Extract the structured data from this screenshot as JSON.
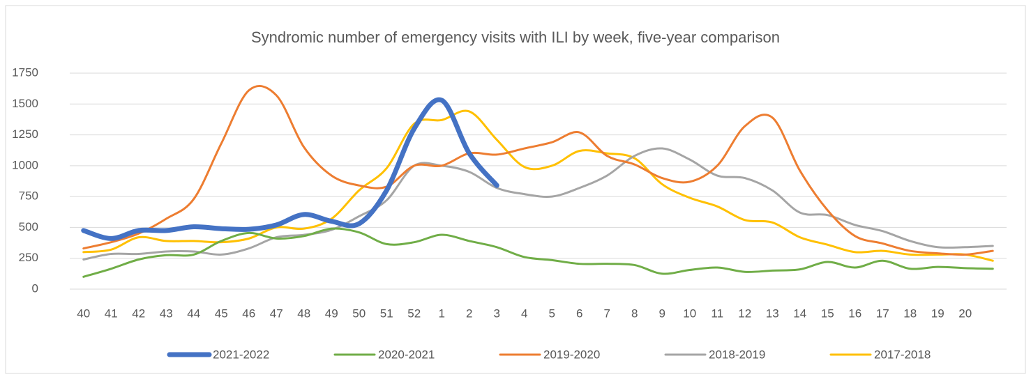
{
  "chart_data": {
    "type": "line",
    "title": "Syndromic number of emergency visits with ILI by week, five-year comparison",
    "categories": [
      "40",
      "41",
      "42",
      "43",
      "44",
      "45",
      "46",
      "47",
      "48",
      "49",
      "50",
      "51",
      "52",
      "1",
      "2",
      "3",
      "4",
      "5",
      "6",
      "7",
      "8",
      "9",
      "10",
      "11",
      "12",
      "13",
      "14",
      "15",
      "16",
      "17",
      "18",
      "19",
      "20",
      null
    ],
    "ylim": [
      0,
      1750
    ],
    "yticks": [
      0,
      250,
      500,
      750,
      1000,
      1250,
      1500,
      1750
    ],
    "grid": true,
    "smooth": true,
    "legend": "bottom",
    "series": [
      {
        "name": "2021-2022",
        "color": "#4472c4",
        "width": 7,
        "values": [
          475,
          410,
          475,
          475,
          505,
          490,
          485,
          520,
          605,
          550,
          530,
          800,
          1300,
          1530,
          1100,
          840,
          null,
          null,
          null,
          null,
          null,
          null,
          null,
          null,
          null,
          null,
          null,
          null,
          null,
          null,
          null,
          null,
          null,
          null
        ]
      },
      {
        "name": "2020-2021",
        "color": "#70ad47",
        "width": 3,
        "values": [
          100,
          165,
          240,
          275,
          280,
          390,
          455,
          410,
          430,
          490,
          460,
          365,
          380,
          440,
          390,
          340,
          260,
          235,
          205,
          205,
          195,
          125,
          155,
          175,
          140,
          150,
          160,
          220,
          175,
          230,
          165,
          180,
          170,
          165
        ]
      },
      {
        "name": "2019-2020",
        "color": "#ed7d31",
        "width": 3,
        "values": [
          330,
          380,
          450,
          570,
          730,
          1180,
          1610,
          1570,
          1150,
          920,
          840,
          830,
          1000,
          1000,
          1100,
          1090,
          1140,
          1190,
          1270,
          1080,
          1010,
          900,
          870,
          1000,
          1320,
          1390,
          960,
          640,
          430,
          370,
          310,
          290,
          280,
          310
        ]
      },
      {
        "name": "2018-2019",
        "color": "#a5a5a5",
        "width": 3,
        "values": [
          240,
          285,
          285,
          305,
          305,
          280,
          330,
          420,
          440,
          480,
          590,
          720,
          1000,
          1000,
          950,
          820,
          770,
          750,
          820,
          920,
          1080,
          1140,
          1050,
          920,
          900,
          800,
          620,
          600,
          520,
          470,
          390,
          340,
          340,
          350
        ]
      },
      {
        "name": "2017-2018",
        "color": "#ffc000",
        "width": 3,
        "values": [
          300,
          320,
          420,
          390,
          390,
          380,
          410,
          500,
          490,
          570,
          800,
          980,
          1340,
          1370,
          1440,
          1210,
          990,
          1000,
          1120,
          1100,
          1060,
          850,
          740,
          670,
          560,
          540,
          420,
          360,
          300,
          310,
          280,
          280,
          280,
          230
        ]
      }
    ]
  }
}
